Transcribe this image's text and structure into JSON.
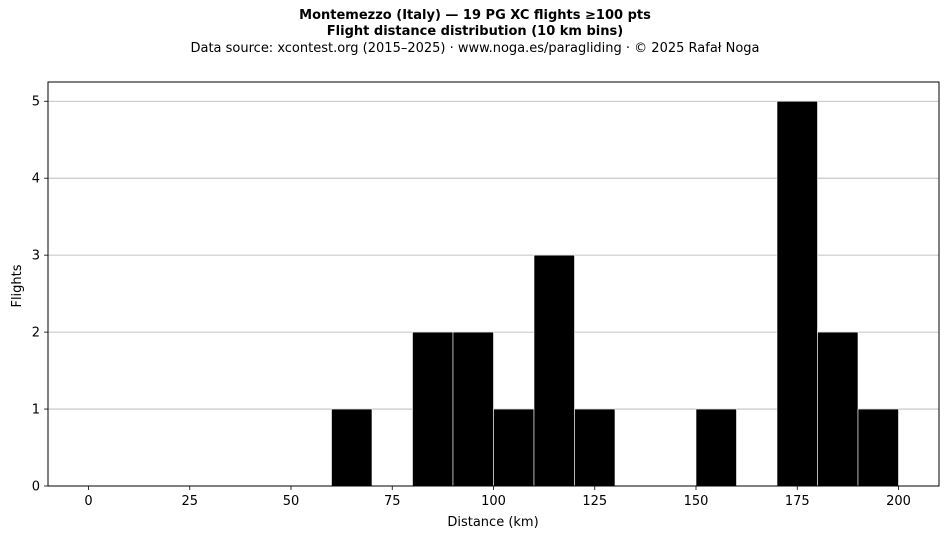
{
  "header": {
    "title_line1": "Montemezzo (Italy)  —  19 PG XC flights ≥100 pts",
    "title_line2": "Flight distance distribution (10 km bins)",
    "subtitle": "Data source: xcontest.org (2015–2025)  ·  www.noga.es/paragliding  ·  © 2025 Rafał Noga"
  },
  "chart_data": {
    "type": "bar",
    "title": "Montemezzo (Italy)  —  19 PG XC flights ≥100 pts",
    "subtitle": "Flight distance distribution (10 km bins)",
    "xlabel": "Distance (km)",
    "ylabel": "Flights",
    "xlim": [
      -10,
      210
    ],
    "ylim": [
      0,
      5.25
    ],
    "xticks": [
      0,
      25,
      50,
      75,
      100,
      125,
      150,
      175,
      200
    ],
    "yticks": [
      0,
      1,
      2,
      3,
      4,
      5
    ],
    "grid": "horizontal",
    "bar_color": "#000000",
    "bins": [
      {
        "start": 60,
        "end": 70,
        "count": 1
      },
      {
        "start": 80,
        "end": 90,
        "count": 2
      },
      {
        "start": 90,
        "end": 100,
        "count": 2
      },
      {
        "start": 100,
        "end": 110,
        "count": 1
      },
      {
        "start": 110,
        "end": 120,
        "count": 3
      },
      {
        "start": 120,
        "end": 130,
        "count": 1
      },
      {
        "start": 150,
        "end": 160,
        "count": 1
      },
      {
        "start": 170,
        "end": 180,
        "count": 5
      },
      {
        "start": 180,
        "end": 190,
        "count": 2
      },
      {
        "start": 190,
        "end": 200,
        "count": 1
      }
    ]
  }
}
